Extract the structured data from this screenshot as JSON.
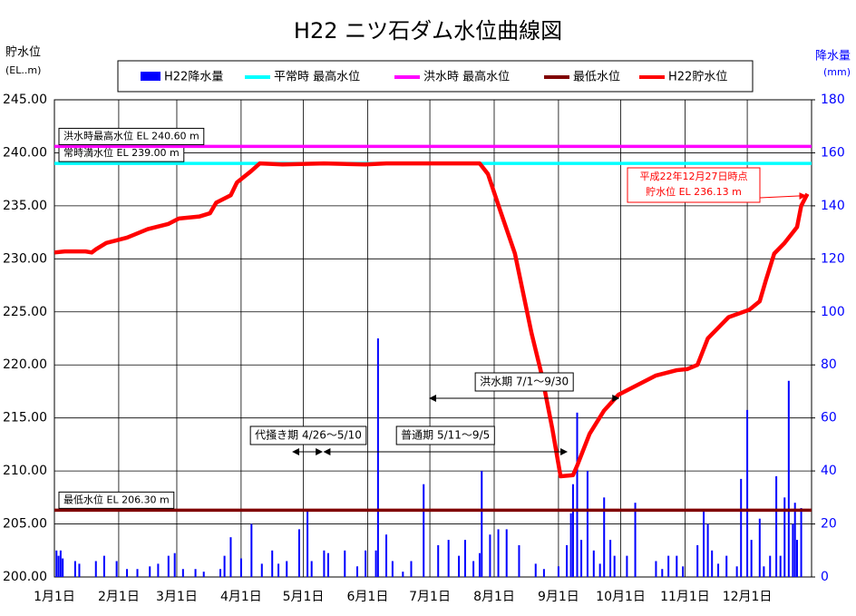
{
  "chart_data": {
    "type": "combo",
    "title": "H22 ニツ石ダム水位曲線図",
    "y_label": [
      "貯水位",
      "(EL..m)"
    ],
    "y2_label": [
      "降水量",
      "(mm)"
    ],
    "xlim": [
      0,
      365
    ],
    "xticks": [
      {
        "value": 0,
        "label": "1月1日"
      },
      {
        "value": 31,
        "label": "2月1日"
      },
      {
        "value": 59,
        "label": "3月1日"
      },
      {
        "value": 90,
        "label": "4月1日"
      },
      {
        "value": 120,
        "label": "5月1日"
      },
      {
        "value": 151,
        "label": "6月1日"
      },
      {
        "value": 181,
        "label": "7月1日"
      },
      {
        "value": 212,
        "label": "8月1日"
      },
      {
        "value": 243,
        "label": "9月1日"
      },
      {
        "value": 273,
        "label": "10月1日"
      },
      {
        "value": 304,
        "label": "11月1日"
      },
      {
        "value": 334,
        "label": "12月1日"
      }
    ],
    "ylim": [
      200,
      245
    ],
    "yticks": [
      {
        "value": 200,
        "label": "200.00"
      },
      {
        "value": 205,
        "label": "205.00"
      },
      {
        "value": 210,
        "label": "210.00"
      },
      {
        "value": 215,
        "label": "215.00"
      },
      {
        "value": 220,
        "label": "220.00"
      },
      {
        "value": 225,
        "label": "225.00"
      },
      {
        "value": 230,
        "label": "230.00"
      },
      {
        "value": 235,
        "label": "235.00"
      },
      {
        "value": 240,
        "label": "240.00"
      },
      {
        "value": 245,
        "label": "245.00"
      }
    ],
    "y2lim": [
      0,
      180
    ],
    "y2ticks": [
      0,
      20,
      40,
      60,
      80,
      100,
      120,
      140,
      160,
      180
    ],
    "grid": true,
    "series": [
      {
        "name": "H22降水量",
        "type": "bar",
        "axis": "y2",
        "color": "#0000ff",
        "x": [
          1,
          2,
          3,
          4,
          10,
          12,
          20,
          24,
          30,
          35,
          40,
          46,
          50,
          55,
          58,
          62,
          68,
          72,
          80,
          82,
          85,
          90,
          95,
          100,
          105,
          108,
          112,
          118,
          122,
          124,
          130,
          132,
          140,
          146,
          150,
          155,
          156,
          160,
          163,
          168,
          172,
          178,
          185,
          190,
          195,
          198,
          202,
          205,
          206,
          210,
          214,
          218,
          224,
          232,
          236,
          243,
          247,
          249,
          250,
          252,
          254,
          257,
          260,
          263,
          265,
          268,
          270,
          276,
          280,
          290,
          293,
          296,
          300,
          303,
          310,
          313,
          315,
          317,
          320,
          324,
          329,
          331,
          334,
          336,
          340,
          342,
          345,
          348,
          350,
          352,
          354,
          356,
          357,
          358,
          360
        ],
        "values": [
          10,
          8,
          10,
          7,
          6,
          5,
          6,
          8,
          6,
          3,
          3,
          4,
          5,
          8,
          9,
          3,
          3,
          2,
          3,
          8,
          15,
          7,
          20,
          5,
          10,
          5,
          6,
          18,
          25,
          6,
          10,
          9,
          10,
          4,
          10,
          10,
          90,
          16,
          6,
          2,
          6,
          35,
          12,
          14,
          8,
          14,
          6,
          9,
          40,
          16,
          18,
          18,
          12,
          5,
          3,
          4,
          12,
          24,
          35,
          62,
          14,
          40,
          10,
          5,
          30,
          14,
          8,
          8,
          28,
          6,
          3,
          8,
          8,
          4,
          12,
          25,
          20,
          10,
          5,
          8,
          4,
          37,
          63,
          14,
          22,
          4,
          8,
          38,
          8,
          30,
          74,
          20,
          28,
          14,
          26
        ]
      },
      {
        "name": "平常時 最高水位",
        "type": "hline",
        "color": "#00ffff",
        "value": 239.0,
        "label": "常時満水位 EL 239.00 m"
      },
      {
        "name": "洪水時 最高水位",
        "type": "hline",
        "color": "#ff00ff",
        "value": 240.6,
        "label": "洪水時最高水位 EL 240.60 m"
      },
      {
        "name": "最低水位",
        "type": "hline",
        "color": "#800000",
        "value": 206.3,
        "label": "最低水位 EL 206.30 m"
      },
      {
        "name": "H22貯水位",
        "type": "line",
        "color": "#ff0000",
        "x": [
          0,
          5,
          15,
          18,
          20,
          25,
          35,
          45,
          55,
          60,
          70,
          75,
          78,
          85,
          88,
          95,
          99,
          110,
          130,
          150,
          160,
          200,
          205,
          209,
          215,
          222,
          230,
          235,
          240,
          244,
          250,
          252,
          258,
          265,
          272,
          280,
          290,
          300,
          305,
          310,
          315,
          320,
          325,
          335,
          340,
          343,
          347,
          352,
          356,
          358,
          360,
          363
        ],
        "values": [
          230.6,
          230.7,
          230.7,
          230.6,
          230.9,
          231.5,
          232.0,
          232.8,
          233.3,
          233.8,
          234.0,
          234.3,
          235.3,
          236.0,
          237.2,
          238.3,
          239.0,
          238.9,
          239.0,
          238.9,
          239.0,
          239.0,
          239.0,
          238.0,
          234.5,
          230.5,
          223.0,
          219.0,
          214.0,
          209.5,
          209.6,
          210.5,
          213.5,
          215.7,
          217.2,
          218.0,
          219.0,
          219.5,
          219.6,
          220.0,
          222.5,
          223.5,
          224.5,
          225.2,
          226.0,
          228.0,
          230.5,
          231.5,
          232.5,
          233.0,
          235.0,
          236.13
        ]
      }
    ],
    "periods": [
      {
        "label": "洪水期 7/1～9/30",
        "start": 181,
        "end": 272
      },
      {
        "label": "代掻き期 4/26～5/10",
        "start": 115,
        "end": 129
      },
      {
        "label": "普通期 5/11～9/5",
        "start": 130,
        "end": 247
      }
    ],
    "callout": [
      "平成22年12月27日時点",
      "貯水位 EL 236.13 m"
    ]
  }
}
